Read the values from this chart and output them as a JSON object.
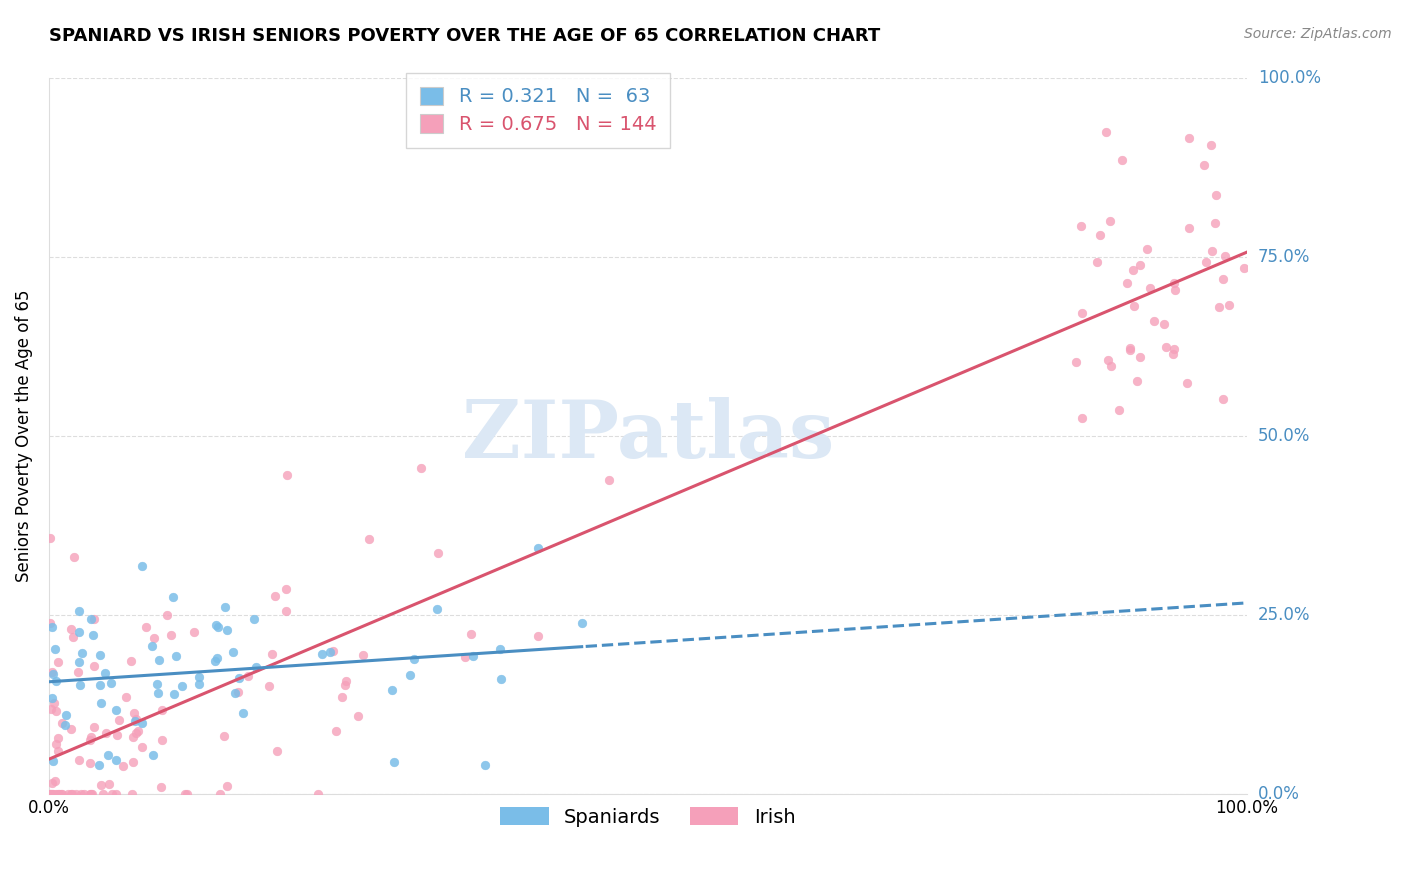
{
  "title": "SPANIARD VS IRISH SENIORS POVERTY OVER THE AGE OF 65 CORRELATION CHART",
  "source": "Source: ZipAtlas.com",
  "ylabel": "Seniors Poverty Over the Age of 65",
  "ytick_vals": [
    0.0,
    0.25,
    0.5,
    0.75,
    1.0
  ],
  "ytick_labels": [
    "0.0%",
    "25.0%",
    "50.0%",
    "75.0%",
    "100.0%"
  ],
  "spaniards_R": 0.321,
  "spaniards_N": 63,
  "irish_R": 0.675,
  "irish_N": 144,
  "spaniard_color": "#7abde8",
  "irish_color": "#f5a0ba",
  "spaniard_line_color": "#4a8ec2",
  "irish_line_color": "#d9546e",
  "ytick_color": "#4a8ec2",
  "legend_label_spaniard": "Spaniards",
  "legend_label_irish": "Irish",
  "watermark": "ZIPatlas",
  "watermark_color": "#dce8f5",
  "bg_color": "#ffffff",
  "grid_color": "#dddddd",
  "title_fontsize": 13,
  "axis_fontsize": 12,
  "legend_fontsize": 14
}
